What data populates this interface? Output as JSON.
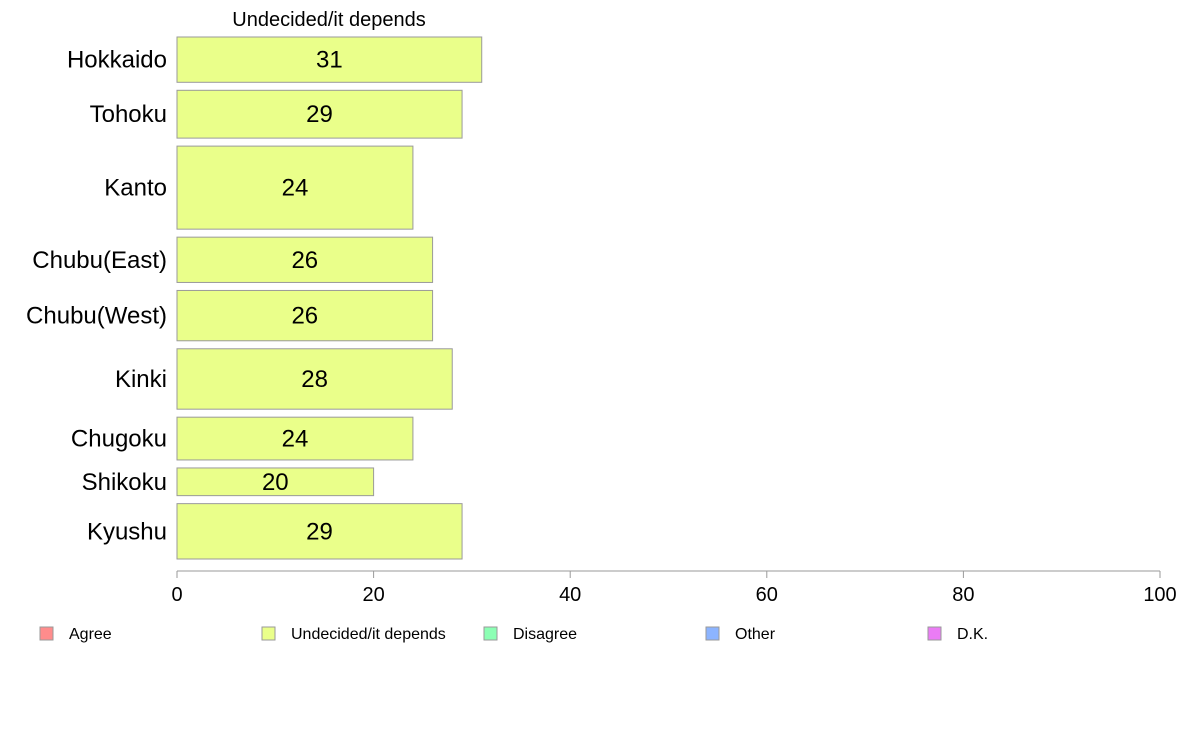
{
  "chart_data": {
    "type": "bar",
    "orientation": "horizontal",
    "title": "Undecided/it depends",
    "categories": [
      "Hokkaido",
      "Tohoku",
      "Kanto",
      "Chubu(East)",
      "Chubu(West)",
      "Kinki",
      "Chugoku",
      "Shikoku",
      "Kyushu"
    ],
    "values": [
      31,
      29,
      24,
      26,
      26,
      28,
      24,
      20,
      29
    ],
    "bar_weights": [
      0.9,
      0.95,
      1.65,
      0.9,
      1.0,
      1.2,
      0.85,
      0.55,
      1.1
    ],
    "xlim": [
      0,
      100
    ],
    "xticks": [
      0,
      20,
      40,
      60,
      80,
      100
    ],
    "grid": false,
    "bar_color": "#eaff8a",
    "bar_stroke": "#9a9a9a",
    "legend": {
      "placement": "bottom",
      "items": [
        {
          "label": "Agree",
          "color": "#ff8c8c"
        },
        {
          "label": "Undecided/it depends",
          "color": "#eaff8a"
        },
        {
          "label": "Disagree",
          "color": "#8cffb4"
        },
        {
          "label": "Other",
          "color": "#8cb4ff"
        },
        {
          "label": "D.K.",
          "color": "#eb7cf5"
        }
      ]
    }
  }
}
